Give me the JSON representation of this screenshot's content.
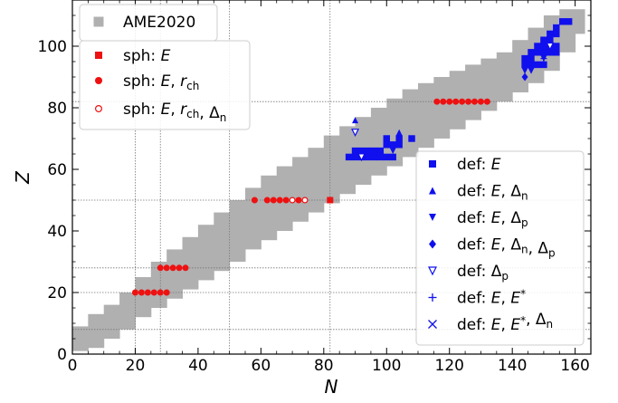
{
  "chart_data": {
    "type": "scatter",
    "xlabel": "N",
    "ylabel": "Z",
    "xlim": [
      0,
      165
    ],
    "ylim": [
      0,
      115
    ],
    "xticks": [
      0,
      20,
      40,
      60,
      80,
      100,
      120,
      140,
      160
    ],
    "yticks": [
      0,
      20,
      40,
      60,
      80,
      100
    ],
    "xtick_labels": [
      "0",
      "20",
      "40",
      "60",
      "80",
      "100",
      "120",
      "140",
      "160"
    ],
    "ytick_labels": [
      "0",
      "20",
      "40",
      "60",
      "80",
      "100"
    ],
    "grid_lines": {
      "N": [
        20,
        28,
        50,
        82
      ],
      "Z": [
        8,
        20,
        28,
        50,
        82
      ]
    },
    "colors": {
      "background_nuclei": "#b0b0b0",
      "sph": "#ee1111",
      "def": "#1010ee"
    },
    "legend_left": {
      "placement": "top-left",
      "entries": [
        {
          "marker": "gray-square",
          "text": "AME2020"
        },
        {
          "marker": "filled-square",
          "text": "sph: E"
        },
        {
          "marker": "filled-circle",
          "text": "sph: E, r_ch"
        },
        {
          "marker": "open-circle",
          "text": "sph: E, r_ch, Δ_n"
        }
      ]
    },
    "legend_right": {
      "placement": "lower-right",
      "entries": [
        {
          "marker": "filled-square",
          "text": "def: E"
        },
        {
          "marker": "triangle-up",
          "text": "def: E, Δ_n"
        },
        {
          "marker": "triangle-down",
          "text": "def: E, Δ_p"
        },
        {
          "marker": "diamond",
          "text": "def: E, Δ_n, Δ_p"
        },
        {
          "marker": "open-triangle-down",
          "text": "def: Δ_p"
        },
        {
          "marker": "plus",
          "text": "def: E, E*"
        },
        {
          "marker": "x",
          "text": "def: E, E*, Δ_n"
        }
      ]
    },
    "ame2020_band": [
      [
        0,
        1,
        9
      ],
      [
        5,
        2,
        13
      ],
      [
        10,
        5,
        16
      ],
      [
        15,
        8,
        20
      ],
      [
        20,
        12,
        25
      ],
      [
        25,
        15,
        30
      ],
      [
        30,
        18,
        34
      ],
      [
        35,
        21,
        38
      ],
      [
        40,
        24,
        42
      ],
      [
        45,
        27,
        46
      ],
      [
        50,
        30,
        50
      ],
      [
        55,
        34,
        54
      ],
      [
        60,
        37,
        58
      ],
      [
        65,
        40,
        61
      ],
      [
        70,
        43,
        64
      ],
      [
        75,
        46,
        67
      ],
      [
        80,
        49,
        71
      ],
      [
        85,
        52,
        74
      ],
      [
        90,
        55,
        77
      ],
      [
        95,
        58,
        80
      ],
      [
        100,
        61,
        83
      ],
      [
        105,
        64,
        86
      ],
      [
        110,
        67,
        88
      ],
      [
        115,
        70,
        90
      ],
      [
        120,
        73,
        92
      ],
      [
        125,
        76,
        94
      ],
      [
        130,
        79,
        96
      ],
      [
        135,
        82,
        98
      ],
      [
        140,
        85,
        102
      ],
      [
        145,
        88,
        106
      ],
      [
        150,
        92,
        110
      ],
      [
        155,
        98,
        112
      ],
      [
        160,
        104,
        112
      ]
    ],
    "series": [
      {
        "marker": "filled-square",
        "color": "#ee1111",
        "points": [
          [
            82,
            50
          ]
        ]
      },
      {
        "marker": "filled-circle",
        "color": "#ee1111",
        "points": [
          [
            20,
            20
          ],
          [
            22,
            20
          ],
          [
            24,
            20
          ],
          [
            26,
            20
          ],
          [
            28,
            20
          ],
          [
            30,
            20
          ],
          [
            28,
            28
          ],
          [
            30,
            28
          ],
          [
            32,
            28
          ],
          [
            34,
            28
          ],
          [
            36,
            28
          ],
          [
            58,
            50
          ],
          [
            62,
            50
          ],
          [
            64,
            50
          ],
          [
            66,
            50
          ],
          [
            68,
            50
          ],
          [
            72,
            50
          ],
          [
            116,
            82
          ],
          [
            118,
            82
          ],
          [
            120,
            82
          ],
          [
            122,
            82
          ],
          [
            124,
            82
          ],
          [
            126,
            82
          ],
          [
            128,
            82
          ],
          [
            130,
            82
          ],
          [
            132,
            82
          ]
        ]
      },
      {
        "marker": "open-circle",
        "color": "#ee1111",
        "points": [
          [
            70,
            50
          ],
          [
            74,
            50
          ]
        ]
      },
      {
        "marker": "filled-square",
        "color": "#1010ee",
        "points": [
          [
            88,
            64
          ],
          [
            90,
            64
          ],
          [
            92,
            64
          ],
          [
            94,
            64
          ],
          [
            96,
            64
          ],
          [
            98,
            64
          ],
          [
            100,
            64
          ],
          [
            102,
            64
          ],
          [
            90,
            66
          ],
          [
            92,
            66
          ],
          [
            94,
            66
          ],
          [
            96,
            66
          ],
          [
            98,
            66
          ],
          [
            100,
            68
          ],
          [
            102,
            68
          ],
          [
            104,
            68
          ],
          [
            100,
            70
          ],
          [
            104,
            70
          ],
          [
            108,
            70
          ],
          [
            144,
            94
          ],
          [
            146,
            94
          ],
          [
            148,
            94
          ],
          [
            150,
            94
          ],
          [
            144,
            96
          ],
          [
            146,
            96
          ],
          [
            146,
            98
          ],
          [
            148,
            98
          ],
          [
            150,
            98
          ],
          [
            152,
            98
          ],
          [
            154,
            98
          ],
          [
            148,
            100
          ],
          [
            150,
            100
          ],
          [
            152,
            100
          ],
          [
            154,
            100
          ],
          [
            150,
            102
          ],
          [
            152,
            102
          ],
          [
            152,
            104
          ],
          [
            154,
            104
          ],
          [
            154,
            106
          ],
          [
            156,
            108
          ],
          [
            158,
            108
          ]
        ]
      },
      {
        "marker": "triangle-up",
        "color": "#1010ee",
        "points": [
          [
            90,
            76
          ],
          [
            104,
            72
          ],
          [
            94,
            64
          ],
          [
            146,
            96
          ]
        ]
      },
      {
        "marker": "triangle-down",
        "color": "#1010ee",
        "points": [
          [
            98,
            66
          ],
          [
            102,
            66
          ],
          [
            144,
            92
          ],
          [
            146,
            92
          ],
          [
            150,
            96
          ]
        ]
      },
      {
        "marker": "diamond",
        "color": "#1010ee",
        "points": [
          [
            144,
            90
          ]
        ]
      },
      {
        "marker": "open-triangle-down",
        "color": "#1010ee",
        "points": [
          [
            90,
            72
          ],
          [
            92,
            64
          ],
          [
            152,
            100
          ]
        ]
      },
      {
        "marker": "plus",
        "color": "#1010ee",
        "points": [
          [
            148,
            94
          ],
          [
            150,
            96
          ],
          [
            152,
            98
          ]
        ]
      },
      {
        "marker": "x",
        "color": "#1010ee",
        "points": [
          [
            146,
            94
          ]
        ]
      }
    ]
  }
}
